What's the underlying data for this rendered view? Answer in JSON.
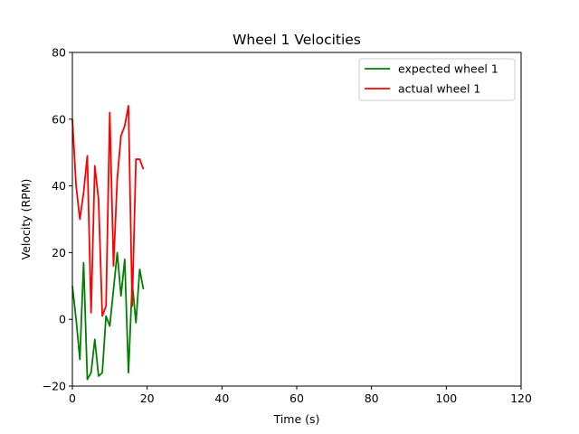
{
  "chart_data": {
    "type": "line",
    "title": "Wheel 1 Velocities",
    "xlabel": "Time (s)",
    "ylabel": "Velocity (RPM)",
    "xlim": [
      0,
      120
    ],
    "ylim": [
      -20,
      80
    ],
    "xticks": [
      0,
      20,
      40,
      60,
      80,
      100,
      120
    ],
    "yticks": [
      -20,
      0,
      20,
      40,
      60,
      80
    ],
    "grid": false,
    "legend_position": "top-right",
    "series": [
      {
        "name": "expected wheel 1",
        "color": "#008000",
        "x": [
          0,
          1,
          2,
          3,
          4,
          5,
          6,
          7,
          8,
          9,
          10,
          11,
          12,
          13,
          14,
          15,
          16,
          17,
          18,
          19
        ],
        "y": [
          10,
          0,
          -12,
          17,
          -18,
          -16,
          -6,
          -17,
          -16,
          1,
          -2,
          9,
          20,
          7,
          18,
          -16,
          11,
          -1,
          15,
          9
        ]
      },
      {
        "name": "actual wheel 1",
        "color": "#ff0000",
        "x": [
          0,
          1,
          2,
          3,
          4,
          5,
          6,
          7,
          8,
          9,
          10,
          11,
          12,
          13,
          14,
          15,
          16,
          17,
          18,
          19
        ],
        "y": [
          60,
          40,
          30,
          38,
          49,
          2,
          46,
          36,
          1,
          4,
          62,
          16,
          42,
          55,
          58,
          64,
          4,
          48,
          48,
          45
        ]
      }
    ]
  }
}
